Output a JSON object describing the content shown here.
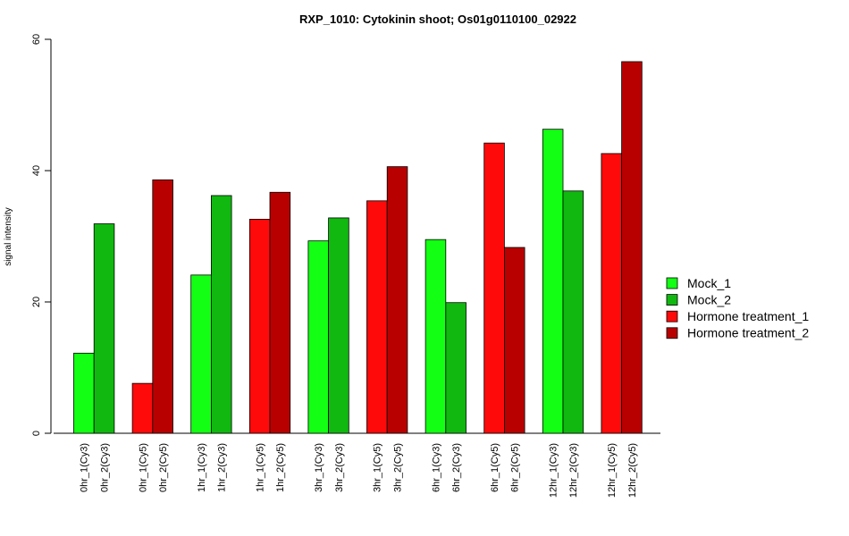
{
  "chart_data": {
    "type": "bar",
    "title": "RXP_1010: Cytokinin shoot; Os01g0110100_02922",
    "ylabel": "signal intensity",
    "xlabel": "",
    "ylim": [
      0,
      60
    ],
    "yticks": [
      0,
      20,
      40,
      60
    ],
    "grid": false,
    "legend_position": "right",
    "groups": [
      {
        "bars": [
          {
            "label": "0hr_1(Cy3)",
            "value": 12.2,
            "series": 0
          },
          {
            "label": "0hr_2(Cy3)",
            "value": 31.9,
            "series": 1
          }
        ]
      },
      {
        "bars": [
          {
            "label": "0hr_1(Cy5)",
            "value": 7.6,
            "series": 2
          },
          {
            "label": "0hr_2(Cy5)",
            "value": 38.6,
            "series": 3
          }
        ]
      },
      {
        "bars": [
          {
            "label": "1hr_1(Cy3)",
            "value": 24.1,
            "series": 0
          },
          {
            "label": "1hr_2(Cy3)",
            "value": 36.2,
            "series": 1
          }
        ]
      },
      {
        "bars": [
          {
            "label": "1hr_1(Cy5)",
            "value": 32.6,
            "series": 2
          },
          {
            "label": "1hr_2(Cy5)",
            "value": 36.7,
            "series": 3
          }
        ]
      },
      {
        "bars": [
          {
            "label": "3hr_1(Cy3)",
            "value": 29.3,
            "series": 0
          },
          {
            "label": "3hr_2(Cy3)",
            "value": 32.8,
            "series": 1
          }
        ]
      },
      {
        "bars": [
          {
            "label": "3hr_1(Cy5)",
            "value": 35.4,
            "series": 2
          },
          {
            "label": "3hr_2(Cy5)",
            "value": 40.6,
            "series": 3
          }
        ]
      },
      {
        "bars": [
          {
            "label": "6hr_1(Cy3)",
            "value": 29.5,
            "series": 0
          },
          {
            "label": "6hr_2(Cy3)",
            "value": 19.9,
            "series": 1
          }
        ]
      },
      {
        "bars": [
          {
            "label": "6hr_1(Cy5)",
            "value": 44.2,
            "series": 2
          },
          {
            "label": "6hr_2(Cy5)",
            "value": 28.3,
            "series": 3
          }
        ]
      },
      {
        "bars": [
          {
            "label": "12hr_1(Cy3)",
            "value": 46.3,
            "series": 0
          },
          {
            "label": "12hr_2(Cy3)",
            "value": 36.9,
            "series": 1
          }
        ]
      },
      {
        "bars": [
          {
            "label": "12hr_1(Cy5)",
            "value": 42.6,
            "series": 2
          },
          {
            "label": "12hr_2(Cy5)",
            "value": 56.6,
            "series": 3
          }
        ]
      }
    ],
    "series": [
      {
        "name": "Mock_1",
        "color": "#13FF13"
      },
      {
        "name": "Mock_2",
        "color": "#10B810"
      },
      {
        "name": "Hormone treatment_1",
        "color": "#FF0A0A"
      },
      {
        "name": "Hormone treatment_2",
        "color": "#B80000"
      }
    ]
  }
}
